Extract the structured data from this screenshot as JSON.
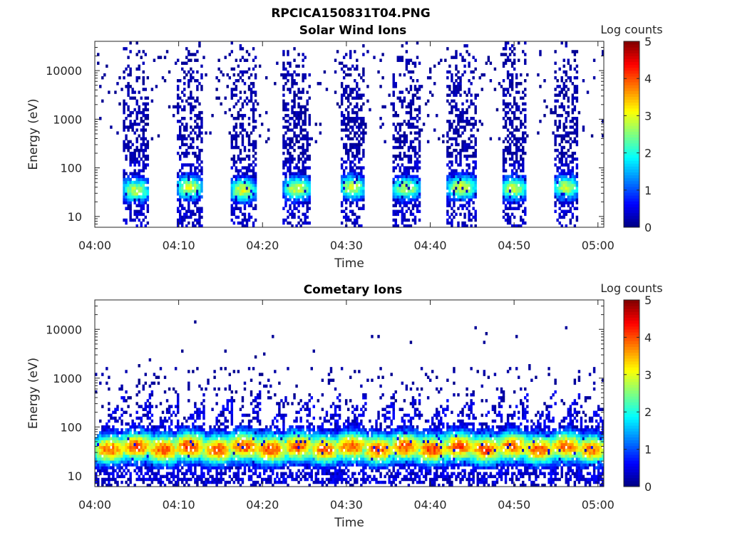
{
  "figure": {
    "title": "RPCICA150831T04.PNG"
  },
  "chart_data": [
    {
      "type": "heatmap",
      "title": "Solar Wind Ions",
      "xlabel": "Time",
      "ylabel": "Energy (eV)",
      "x_ticks": [
        "04:00",
        "04:10",
        "04:20",
        "04:30",
        "04:40",
        "04:50",
        "05:00"
      ],
      "x_tick_minutes": [
        0,
        10,
        20,
        30,
        40,
        50,
        60
      ],
      "xlim_minutes": [
        0,
        60.7
      ],
      "y_scale": "log",
      "ylim": [
        6,
        40000
      ],
      "y_ticks": [
        "10",
        "100",
        "1000",
        "10000"
      ],
      "y_tick_values": [
        10,
        100,
        1000,
        10000
      ],
      "colorbar": {
        "label": "Log counts",
        "range": [
          0,
          5
        ],
        "ticks": [
          "0",
          "1",
          "2",
          "3",
          "4",
          "5"
        ],
        "colormap": "jet"
      },
      "bursts": [
        {
          "start_min": 3.3,
          "end_min": 6.5,
          "peak_energy_ev": 35,
          "peak_log_counts": 2.8
        },
        {
          "start_min": 9.8,
          "end_min": 12.8,
          "peak_energy_ev": 40,
          "peak_log_counts": 2.9
        },
        {
          "start_min": 16.2,
          "end_min": 19.2,
          "peak_energy_ev": 35,
          "peak_log_counts": 3.0
        },
        {
          "start_min": 22.5,
          "end_min": 25.8,
          "peak_energy_ev": 38,
          "peak_log_counts": 2.9
        },
        {
          "start_min": 29.2,
          "end_min": 32.2,
          "peak_energy_ev": 40,
          "peak_log_counts": 2.9
        },
        {
          "start_min": 35.5,
          "end_min": 38.8,
          "peak_energy_ev": 38,
          "peak_log_counts": 2.8
        },
        {
          "start_min": 42.0,
          "end_min": 45.5,
          "peak_energy_ev": 40,
          "peak_log_counts": 3.0
        },
        {
          "start_min": 48.5,
          "end_min": 51.5,
          "peak_energy_ev": 38,
          "peak_log_counts": 2.9
        },
        {
          "start_min": 54.7,
          "end_min": 57.7,
          "peak_energy_ev": 40,
          "peak_log_counts": 2.8
        }
      ]
    },
    {
      "type": "heatmap",
      "title": "Cometary Ions",
      "xlabel": "Time",
      "ylabel": "Energy (eV)",
      "x_ticks": [
        "04:00",
        "04:10",
        "04:20",
        "04:30",
        "04:40",
        "04:50",
        "05:00"
      ],
      "x_tick_minutes": [
        0,
        10,
        20,
        30,
        40,
        50,
        60
      ],
      "xlim_minutes": [
        0,
        60.7
      ],
      "y_scale": "log",
      "ylim": [
        6,
        40000
      ],
      "y_ticks": [
        "10",
        "100",
        "1000",
        "10000"
      ],
      "y_tick_values": [
        10,
        100,
        1000,
        10000
      ],
      "colorbar": {
        "label": "Log counts",
        "range": [
          0,
          5
        ],
        "ticks": [
          "0",
          "1",
          "2",
          "3",
          "4",
          "5"
        ],
        "colormap": "jet"
      },
      "bursts": [
        {
          "center_min": 1.8,
          "peak_energy_ev": 35,
          "peak_log_counts": 3.9
        },
        {
          "center_min": 5.0,
          "peak_energy_ev": 40,
          "peak_log_counts": 4.0
        },
        {
          "center_min": 8.2,
          "peak_energy_ev": 35,
          "peak_log_counts": 4.0
        },
        {
          "center_min": 11.3,
          "peak_energy_ev": 40,
          "peak_log_counts": 4.1
        },
        {
          "center_min": 14.6,
          "peak_energy_ev": 35,
          "peak_log_counts": 4.0
        },
        {
          "center_min": 17.8,
          "peak_energy_ev": 40,
          "peak_log_counts": 4.0
        },
        {
          "center_min": 21.0,
          "peak_energy_ev": 35,
          "peak_log_counts": 4.1
        },
        {
          "center_min": 24.2,
          "peak_energy_ev": 40,
          "peak_log_counts": 4.0
        },
        {
          "center_min": 27.4,
          "peak_energy_ev": 35,
          "peak_log_counts": 3.9
        },
        {
          "center_min": 30.6,
          "peak_energy_ev": 40,
          "peak_log_counts": 4.0
        },
        {
          "center_min": 33.8,
          "peak_energy_ev": 35,
          "peak_log_counts": 4.0
        },
        {
          "center_min": 37.0,
          "peak_energy_ev": 40,
          "peak_log_counts": 4.0
        },
        {
          "center_min": 40.2,
          "peak_energy_ev": 35,
          "peak_log_counts": 4.1
        },
        {
          "center_min": 43.4,
          "peak_energy_ev": 40,
          "peak_log_counts": 4.1
        },
        {
          "center_min": 46.6,
          "peak_energy_ev": 35,
          "peak_log_counts": 4.0
        },
        {
          "center_min": 49.8,
          "peak_energy_ev": 40,
          "peak_log_counts": 3.9
        },
        {
          "center_min": 53.0,
          "peak_energy_ev": 35,
          "peak_log_counts": 4.0
        },
        {
          "center_min": 56.2,
          "peak_energy_ev": 40,
          "peak_log_counts": 3.9
        },
        {
          "center_min": 59.3,
          "peak_energy_ev": 35,
          "peak_log_counts": 3.8
        }
      ]
    }
  ]
}
